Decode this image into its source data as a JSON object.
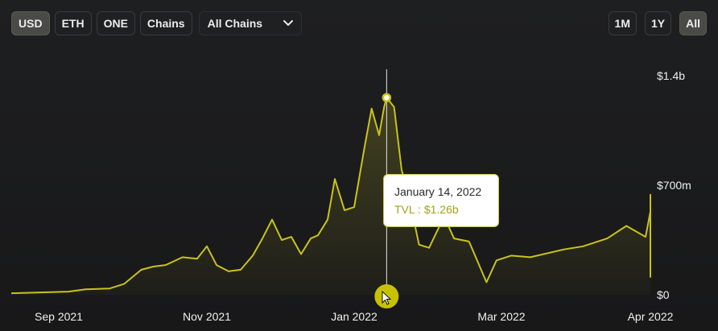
{
  "toolbar": {
    "denominations": [
      {
        "label": "USD",
        "active": true
      },
      {
        "label": "ETH",
        "active": false
      },
      {
        "label": "ONE",
        "active": false
      },
      {
        "label": "Chains",
        "active": false
      }
    ],
    "chain_select": {
      "value": "All Chains",
      "icon": "chevron-down-icon"
    },
    "ranges": [
      {
        "label": "1M",
        "active": false
      },
      {
        "label": "1Y",
        "active": false
      },
      {
        "label": "All",
        "active": true
      }
    ]
  },
  "tooltip": {
    "date": "January 14, 2022",
    "value": "TVL : $1.26b"
  },
  "colors": {
    "line": "#c9c31c",
    "background": "#1c1d1f",
    "handle": "#c8c100"
  },
  "chart_data": {
    "type": "area",
    "ylim": [
      0,
      1.4
    ],
    "y_ticks": [
      "$1.4b",
      "$700m",
      "$0"
    ],
    "x_ticks": [
      {
        "label": "Sep 2021",
        "date": "2021-09-01"
      },
      {
        "label": "Nov 2021",
        "date": "2021-11-01"
      },
      {
        "label": "Jan 2022",
        "date": "2022-01-01"
      },
      {
        "label": "Mar 2022",
        "date": "2022-03-01"
      },
      {
        "label": "Apr 2022",
        "date": "2022-04-01"
      }
    ],
    "series": [
      {
        "values": [
          [
            "2021-08-02",
            0.01
          ],
          [
            "2021-08-20",
            0.013
          ],
          [
            "2021-09-05",
            0.02
          ],
          [
            "2021-09-12",
            0.035
          ],
          [
            "2021-09-22",
            0.04
          ],
          [
            "2021-09-28",
            0.07
          ],
          [
            "2021-10-05",
            0.16
          ],
          [
            "2021-10-10",
            0.18
          ],
          [
            "2021-10-15",
            0.19
          ],
          [
            "2021-10-22",
            0.24
          ],
          [
            "2021-10-28",
            0.23
          ],
          [
            "2021-11-01",
            0.31
          ],
          [
            "2021-11-05",
            0.19
          ],
          [
            "2021-11-10",
            0.15
          ],
          [
            "2021-11-15",
            0.16
          ],
          [
            "2021-11-20",
            0.25
          ],
          [
            "2021-11-24",
            0.36
          ],
          [
            "2021-11-28",
            0.48
          ],
          [
            "2021-12-02",
            0.35
          ],
          [
            "2021-12-06",
            0.37
          ],
          [
            "2021-12-10",
            0.26
          ],
          [
            "2021-12-14",
            0.36
          ],
          [
            "2021-12-17",
            0.38
          ],
          [
            "2021-12-21",
            0.48
          ],
          [
            "2021-12-24",
            0.74
          ],
          [
            "2021-12-28",
            0.54
          ],
          [
            "2022-01-01",
            0.56
          ],
          [
            "2022-01-05",
            0.93
          ],
          [
            "2022-01-08",
            1.19
          ],
          [
            "2022-01-11",
            1.02
          ],
          [
            "2022-01-13",
            1.2
          ],
          [
            "2022-01-14",
            1.26
          ],
          [
            "2022-01-17",
            1.2
          ],
          [
            "2022-01-20",
            0.8
          ],
          [
            "2022-01-23",
            0.62
          ],
          [
            "2022-01-27",
            0.32
          ],
          [
            "2022-01-31",
            0.3
          ],
          [
            "2022-02-06",
            0.5
          ],
          [
            "2022-02-10",
            0.36
          ],
          [
            "2022-02-16",
            0.34
          ],
          [
            "2022-02-23",
            0.08
          ],
          [
            "2022-02-27",
            0.22
          ],
          [
            "2022-03-03",
            0.25
          ],
          [
            "2022-03-07",
            0.24
          ],
          [
            "2022-03-14",
            0.29
          ],
          [
            "2022-03-18",
            0.31
          ],
          [
            "2022-03-23",
            0.36
          ],
          [
            "2022-03-27",
            0.44
          ],
          [
            "2022-03-31",
            0.37
          ],
          [
            "2022-04-04",
            0.53
          ],
          [
            "2022-04-07",
            0.5
          ],
          [
            "2022-04-10",
            0.58
          ],
          [
            "2022-04-13",
            0.64
          ],
          [
            "2022-04-16",
            0.41
          ],
          [
            "2022-04-20",
            0.3
          ],
          [
            "2022-04-25",
            0.24
          ],
          [
            "2022-04-30",
            0.14
          ],
          [
            "2022-05-03",
            0.11
          ]
        ]
      }
    ],
    "highlight": {
      "date": "2022-01-14",
      "value": 1.26
    }
  }
}
